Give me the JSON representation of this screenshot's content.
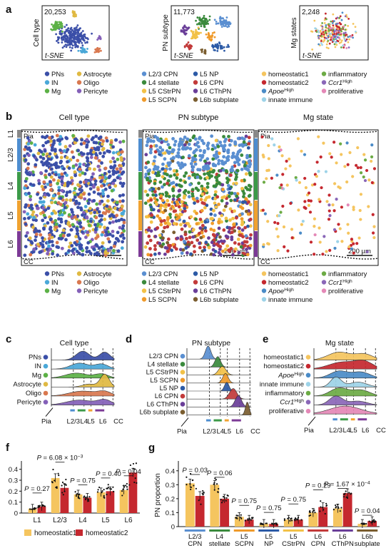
{
  "panel_letters": [
    "a",
    "b",
    "c",
    "d",
    "e",
    "f",
    "g"
  ],
  "colors": {
    "cell": [
      "#3b4fa8",
      "#4aa8d8",
      "#5cb146",
      "#e0b942",
      "#d9784f",
      "#8460b8"
    ],
    "pn": [
      "#5a8fd1",
      "#3a8a3c",
      "#f2c147",
      "#ef9a2a",
      "#2c5aa6",
      "#c23a3a",
      "#6a3e98",
      "#7a5d2f"
    ],
    "mg": [
      "#f5c55f",
      "#c5282f",
      "#4a8bc7",
      "#9dd3e8",
      "#6cab45",
      "#8a67b8",
      "#e488b7"
    ],
    "layers": [
      "#4d8dd0",
      "#3c9a48",
      "#f0a230",
      "#7c3a96"
    ],
    "f_bars": [
      "#f5c55f",
      "#c5282f"
    ],
    "g_bars": [
      "#f5c55f",
      "#c5282f"
    ]
  },
  "panel_a": {
    "counts": [
      "20,253",
      "11,773",
      "2,248"
    ],
    "ylabels": [
      "Cell type",
      "PN subtype",
      "Mg states"
    ],
    "xlabel": "t-SNE"
  },
  "legend_cell": [
    "PNs",
    "IN",
    "Mg",
    "Astrocyte",
    "Oligo",
    "Pericyte"
  ],
  "legend_pn": [
    "L2/3 CPN",
    "L4 stellate",
    "L5 CStrPN",
    "L5 SCPN",
    "L5 NP",
    "L6 CPN",
    "L6 CThPN",
    "L6b subplate"
  ],
  "legend_mg": [
    "homeostatic1",
    "homeostatic2",
    "Apoe^High",
    "innate immune",
    "inflammatory",
    "Ccr1^High",
    "proliferative"
  ],
  "panel_b": {
    "titles": [
      "Cell type",
      "PN subtype",
      "Mg state"
    ],
    "layers": [
      "L1",
      "L2/3",
      "L4",
      "L5",
      "L6"
    ],
    "pia": "Pia",
    "cc": "CC",
    "scale": "200 µm"
  },
  "panel_cde": {
    "titles": [
      "Cell type",
      "PN subtype",
      "Mg state"
    ],
    "ticks": [
      "L2/3",
      "L4",
      "L5",
      "L6",
      "CC"
    ],
    "pia": "Pia"
  },
  "chart_data": [
    {
      "type": "bar",
      "title": "",
      "categories": [
        "L1",
        "L2/3",
        "L4",
        "L5",
        "L6"
      ],
      "series": [
        {
          "name": "homeostatic1",
          "values": [
            0.04,
            0.32,
            0.17,
            0.19,
            0.21
          ]
        },
        {
          "name": "homeostatic2",
          "values": [
            0.06,
            0.23,
            0.14,
            0.2,
            0.37
          ]
        }
      ],
      "ylim": [
        0,
        0.45
      ],
      "yticks": [
        "0",
        "0.1",
        "0.2",
        "0.3",
        "0.4"
      ],
      "annotations": [
        {
          "text": "P = 0.27",
          "category": "L1"
        },
        {
          "text": "P = 6.08 × 10^−3",
          "category": "L2/3"
        },
        {
          "text": "P = 0.75",
          "category": "L4"
        },
        {
          "text": "P = 0.40",
          "category": "L5"
        },
        {
          "text": "P = 0.04",
          "category": "L6"
        }
      ]
    },
    {
      "type": "bar",
      "title": "",
      "ylabel": "PN proportion",
      "categories": [
        "L2/3 CPN",
        "L4 stellate",
        "L5 SCPN",
        "L5 NP",
        "L5 CStrPN",
        "L6 CPN",
        "L6 CThPN",
        "L6b subplate"
      ],
      "series": [
        {
          "name": "homeostatic1",
          "values": [
            0.31,
            0.3,
            0.07,
            0.02,
            0.05,
            0.1,
            0.13,
            0.02
          ]
        },
        {
          "name": "homeostatic2",
          "values": [
            0.22,
            0.2,
            0.05,
            0.02,
            0.05,
            0.14,
            0.24,
            0.04
          ]
        }
      ],
      "ylim": [
        0,
        0.45
      ],
      "yticks": [
        "0",
        "0.1",
        "0.2",
        "0.3",
        "0.4"
      ],
      "annotations": [
        {
          "text": "P = 0.03",
          "category": "L2/3 CPN"
        },
        {
          "text": "P = 0.06",
          "category": "L4 stellate"
        },
        {
          "text": "P = 0.75",
          "category": "L5 SCPN"
        },
        {
          "text": "P = 0.75",
          "category": "L5 NP"
        },
        {
          "text": "P = 0.75",
          "category": "L5 CStrPN"
        },
        {
          "text": "P = 0.29",
          "category": "L6 CPN"
        },
        {
          "text": "P = 1.67 × 10^−4",
          "category": "L6 CThPN"
        },
        {
          "text": "P = 0.04",
          "category": "L6b subplate"
        }
      ]
    }
  ]
}
